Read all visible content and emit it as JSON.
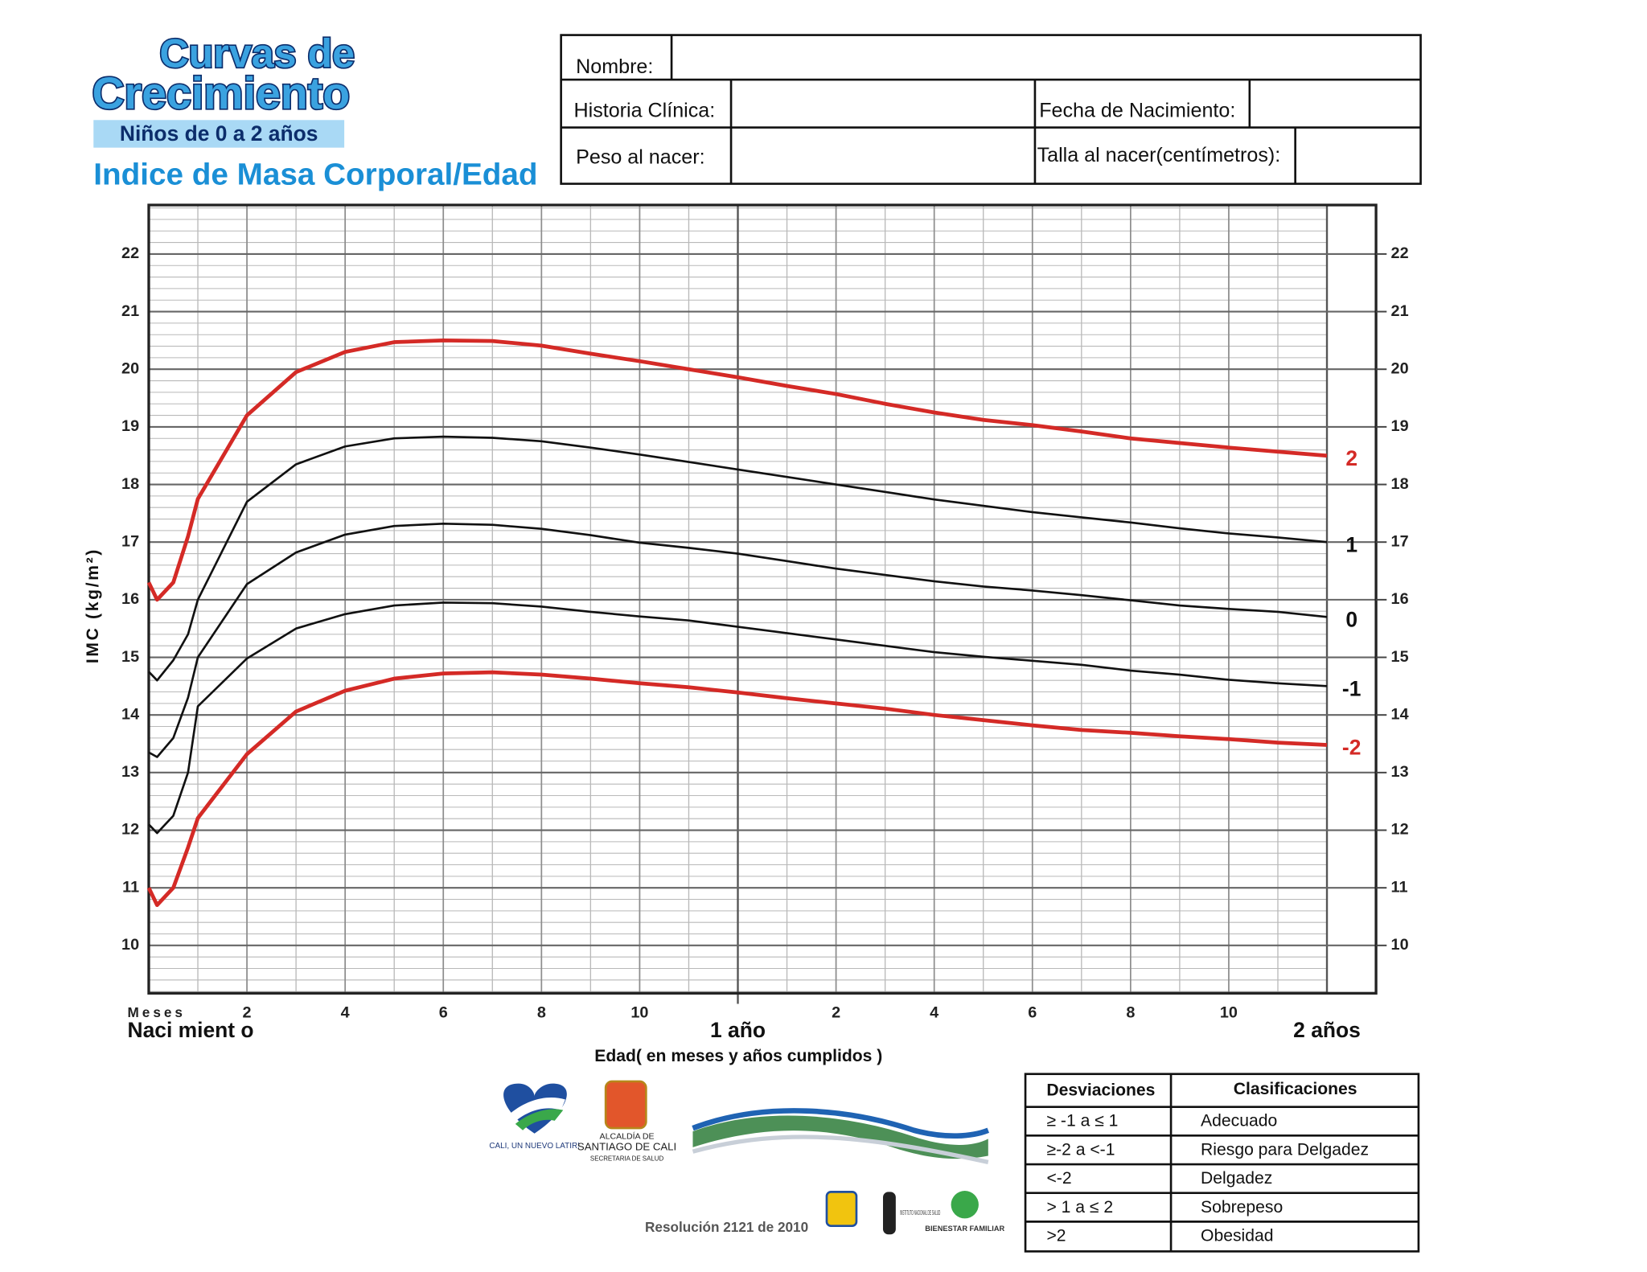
{
  "header": {
    "logo_line1": "Curvas de",
    "logo_line2": "Crecimiento",
    "age_range": "Niños de 0 a 2 años",
    "indicator": "Indice de Masa Corporal/Edad"
  },
  "form": {
    "name": "Nombre:",
    "record": "Historia Clínica:",
    "birth_date": "Fecha de Nacimiento:",
    "birth_weight": "Peso al nacer:",
    "birth_length": "Talla al nacer(centímetros):"
  },
  "chart_data": {
    "type": "line",
    "x_label": "Edad( en meses y años cumplidos )",
    "y_label": "IMC (kg/m²)",
    "x_unit_label": "Meses",
    "x": [
      0,
      0.17,
      0.5,
      0.8,
      1,
      2,
      3,
      4,
      5,
      6,
      7,
      8,
      9,
      10,
      11,
      12,
      13,
      14,
      15,
      16,
      17,
      18,
      19,
      20,
      21,
      22,
      23,
      24
    ],
    "series": [
      {
        "name": "2",
        "color": "#d42a26",
        "values": [
          16.3,
          16.0,
          16.3,
          17.1,
          17.75,
          19.2,
          19.95,
          20.3,
          20.47,
          20.5,
          20.49,
          20.41,
          20.27,
          20.14,
          20.0,
          19.86,
          19.71,
          19.57,
          19.4,
          19.25,
          19.12,
          19.03,
          18.92,
          18.8,
          18.72,
          18.64,
          18.57,
          18.5
        ]
      },
      {
        "name": "1",
        "color": "#111111",
        "values": [
          14.75,
          14.6,
          14.95,
          15.4,
          16.0,
          17.7,
          18.35,
          18.66,
          18.8,
          18.83,
          18.81,
          18.75,
          18.64,
          18.52,
          18.39,
          18.26,
          18.13,
          18.0,
          17.87,
          17.74,
          17.63,
          17.52,
          17.43,
          17.34,
          17.24,
          17.15,
          17.08,
          17.0
        ]
      },
      {
        "name": "0",
        "color": "#111111",
        "values": [
          13.35,
          13.27,
          13.6,
          14.3,
          15.0,
          16.27,
          16.82,
          17.13,
          17.28,
          17.32,
          17.3,
          17.23,
          17.12,
          16.99,
          16.9,
          16.8,
          16.67,
          16.54,
          16.43,
          16.32,
          16.23,
          16.16,
          16.08,
          15.99,
          15.9,
          15.84,
          15.79,
          15.7
        ]
      },
      {
        "name": "-1",
        "color": "#111111",
        "values": [
          12.1,
          11.95,
          12.25,
          13.0,
          14.15,
          14.98,
          15.5,
          15.75,
          15.9,
          15.95,
          15.94,
          15.88,
          15.79,
          15.71,
          15.64,
          15.53,
          15.42,
          15.31,
          15.2,
          15.09,
          15.01,
          14.94,
          14.87,
          14.77,
          14.7,
          14.61,
          14.55,
          14.5
        ]
      },
      {
        "name": "-2",
        "color": "#d42a26",
        "values": [
          11.0,
          10.7,
          11.0,
          11.7,
          12.21,
          13.32,
          14.06,
          14.42,
          14.63,
          14.72,
          14.74,
          14.7,
          14.63,
          14.55,
          14.48,
          14.39,
          14.29,
          14.2,
          14.11,
          14.0,
          13.91,
          13.82,
          13.74,
          13.69,
          13.63,
          13.58,
          13.52,
          13.48
        ]
      }
    ],
    "xlim": [
      0,
      25
    ],
    "ylim": [
      9.17,
      22.85
    ],
    "y2lim": [
      9.17,
      22.85
    ],
    "xticks": [
      2,
      4,
      6,
      8,
      10,
      {
        "value": 14,
        "label": "2"
      },
      {
        "value": 16,
        "label": "4"
      },
      {
        "value": 18,
        "label": "6"
      },
      {
        "value": 20,
        "label": "8"
      },
      {
        "value": 22,
        "label": "10"
      }
    ],
    "year_ticks": [
      {
        "value": 0,
        "label": "Naci mient o"
      },
      {
        "value": 12,
        "label": "1 año"
      },
      {
        "value": 24,
        "label": "2 años"
      }
    ],
    "yticks": [
      10,
      11,
      12,
      13,
      14,
      15,
      16,
      17,
      18,
      19,
      20,
      21,
      22
    ],
    "y2ticks": [
      10,
      11,
      12,
      13,
      14,
      15,
      16,
      17,
      18,
      19,
      20,
      21,
      22
    ],
    "x_minor_step": 1,
    "y_minor_step": 0.2,
    "grid": true
  },
  "classification": {
    "headers": [
      "Desviaciones",
      "Clasificaciones"
    ],
    "rows": [
      [
        "≥ -1 a ≤ 1",
        "Adecuado"
      ],
      [
        "≥-2 a <-1",
        "Riesgo para Delgadez"
      ],
      [
        "<-2",
        "Delgadez"
      ],
      [
        "> 1 a ≤ 2",
        "Sobrepeso"
      ],
      [
        ">2",
        "Obesidad"
      ]
    ]
  },
  "footer": {
    "resolution": "Resolución 2121 de 2010",
    "cali_slogan": "CALI, UN NUEVO LATIR!",
    "alcaldia": "ALCALDÍA DE",
    "city": "SANTIAGO DE CALI",
    "secretaria": "SECRETARIA DE SALUD",
    "ins": "INSTITUTO NACIONAL DE SALUD",
    "icbf": "BIENESTAR FAMILIAR"
  }
}
